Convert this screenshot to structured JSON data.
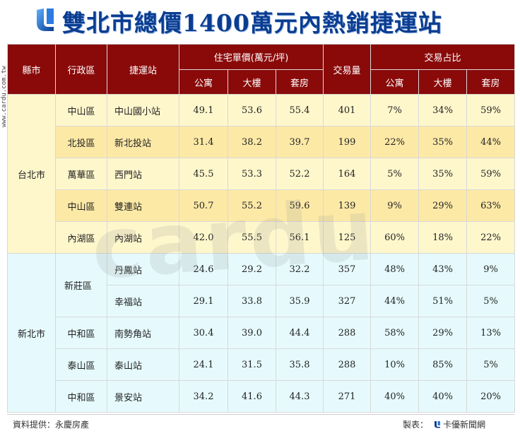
{
  "title": "雙北市總價1400萬元內熱銷捷運站",
  "side_watermark": "www.cardu.com.tw",
  "watermark": "cardu",
  "header": {
    "county": "縣市",
    "district": "行政區",
    "station": "捷運站",
    "unit_price": "住宅單價(萬元/坪)",
    "volume": "交易量",
    "share": "交易占比",
    "apt": "公寓",
    "building": "大樓",
    "suite": "套房"
  },
  "groups": [
    {
      "county": "台北市",
      "rows": [
        {
          "district": "中山區",
          "station": "中山國小站",
          "p_apt": "49.1",
          "p_bld": "53.6",
          "p_suite": "55.4",
          "volume": "401",
          "s_apt": "7%",
          "s_bld": "34%",
          "s_suite": "59%"
        },
        {
          "district": "北投區",
          "station": "新北投站",
          "p_apt": "31.4",
          "p_bld": "38.2",
          "p_suite": "39.7",
          "volume": "199",
          "s_apt": "22%",
          "s_bld": "35%",
          "s_suite": "44%"
        },
        {
          "district": "萬華區",
          "station": "西門站",
          "p_apt": "45.5",
          "p_bld": "53.3",
          "p_suite": "52.2",
          "volume": "164",
          "s_apt": "5%",
          "s_bld": "35%",
          "s_suite": "59%"
        },
        {
          "district": "中山區",
          "station": "雙連站",
          "p_apt": "50.7",
          "p_bld": "55.2",
          "p_suite": "59.6",
          "volume": "139",
          "s_apt": "9%",
          "s_bld": "29%",
          "s_suite": "63%"
        },
        {
          "district": "內湖區",
          "station": "內湖站",
          "p_apt": "42.0",
          "p_bld": "55.5",
          "p_suite": "56.1",
          "volume": "125",
          "s_apt": "60%",
          "s_bld": "18%",
          "s_suite": "22%"
        }
      ]
    },
    {
      "county": "新北市",
      "rows": [
        {
          "district": "新莊區",
          "station": "丹鳳站",
          "p_apt": "24.6",
          "p_bld": "29.2",
          "p_suite": "32.2",
          "volume": "357",
          "s_apt": "48%",
          "s_bld": "43%",
          "s_suite": "9%"
        },
        {
          "district": "",
          "station": "幸福站",
          "p_apt": "29.1",
          "p_bld": "33.8",
          "p_suite": "35.9",
          "volume": "327",
          "s_apt": "44%",
          "s_bld": "51%",
          "s_suite": "5%"
        },
        {
          "district": "中和區",
          "station": "南勢角站",
          "p_apt": "30.4",
          "p_bld": "39.0",
          "p_suite": "44.4",
          "volume": "288",
          "s_apt": "58%",
          "s_bld": "29%",
          "s_suite": "13%"
        },
        {
          "district": "泰山區",
          "station": "泰山站",
          "p_apt": "24.1",
          "p_bld": "31.5",
          "p_suite": "35.8",
          "volume": "288",
          "s_apt": "10%",
          "s_bld": "85%",
          "s_suite": "5%"
        },
        {
          "district": "中和區",
          "station": "景安站",
          "p_apt": "34.2",
          "p_bld": "41.6",
          "p_suite": "44.3",
          "volume": "271",
          "s_apt": "40%",
          "s_bld": "40%",
          "s_suite": "20%"
        }
      ]
    }
  ],
  "footer": {
    "source": "資料提供：永慶房產",
    "maker_label": "製表：",
    "maker": "卡優新聞網"
  },
  "colors": {
    "header_bg": "#8a0a0a",
    "taipei_row_a": "#fff7cc",
    "taipei_row_b": "#fde9a6",
    "newtaipei_row": "#e6fafd",
    "title": "#0a3d91"
  }
}
